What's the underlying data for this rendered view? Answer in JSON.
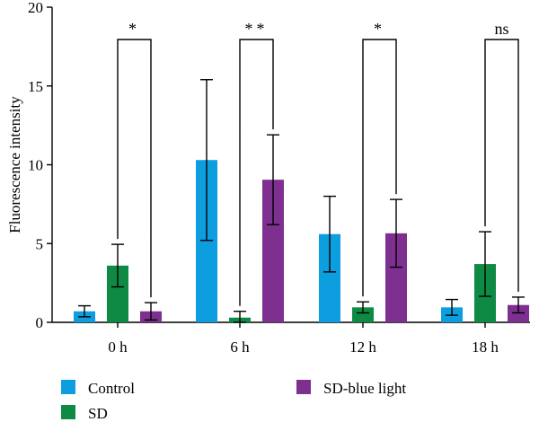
{
  "chart_data": {
    "type": "bar",
    "title": "",
    "xlabel": "",
    "ylabel": "Fluorescence intensity",
    "ylim": [
      0,
      20
    ],
    "yticks": [
      0,
      5,
      10,
      15,
      20
    ],
    "categories": [
      "0 h",
      "6 h",
      "12 h",
      "18 h"
    ],
    "series": [
      {
        "name": "Control",
        "color": "#0d9ee0",
        "values": [
          0.7,
          10.3,
          5.6,
          0.95
        ],
        "errors": [
          0.35,
          5.1,
          2.4,
          0.5
        ]
      },
      {
        "name": "SD",
        "color": "#0e8a44",
        "values": [
          3.6,
          0.3,
          0.95,
          3.7
        ],
        "errors": [
          1.35,
          0.4,
          0.35,
          2.05
        ]
      },
      {
        "name": "SD-blue light",
        "color": "#7d3090",
        "values": [
          0.7,
          9.05,
          5.65,
          1.1
        ],
        "errors": [
          0.55,
          2.85,
          2.15,
          0.5
        ]
      }
    ],
    "significance": [
      "*",
      "**",
      "*",
      "ns"
    ],
    "legend_position": "bottom",
    "grid": false
  }
}
